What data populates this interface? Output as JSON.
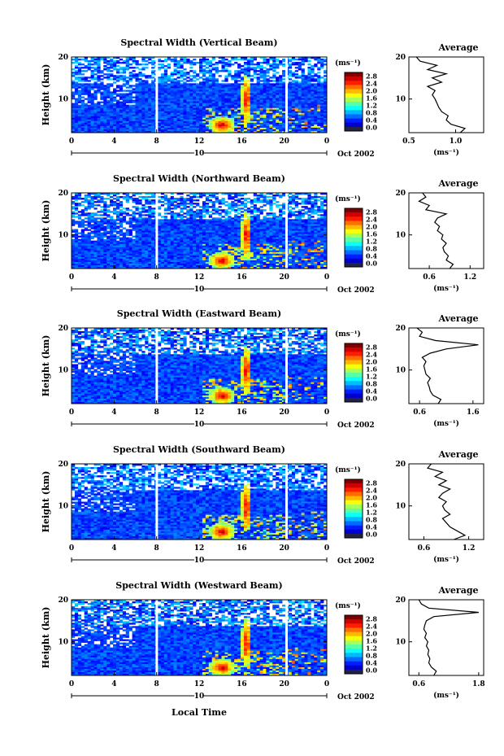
{
  "figure": {
    "xaxis_label": "Local Time",
    "month_label": "Oct 2002",
    "date_label": "10",
    "colorbar_unit": "(ms⁻¹)",
    "average_title": "Average",
    "average_xunit": "(ms⁻¹)",
    "height_label": "Height (km)"
  },
  "chart_data": [
    {
      "type": "heatmap",
      "title": "Spectral Width (Vertical Beam)",
      "xlim": [
        0,
        24
      ],
      "x_ticks": [
        "0",
        "4",
        "8",
        "12",
        "16",
        "20",
        "0"
      ],
      "ylim": [
        2,
        20
      ],
      "y_ticks": [
        "10",
        "20"
      ],
      "ylabel": "Height (km)",
      "colorbar_ticks": [
        "2.8",
        "2.4",
        "2.0",
        "1.6",
        "1.2",
        "0.8",
        "0.4",
        "0.0"
      ],
      "average": {
        "title": "Average",
        "xlim": [
          0.5,
          1.3
        ],
        "x_ticks": [
          "0.5",
          "1.0"
        ],
        "profile": [
          [
            1.05,
            2
          ],
          [
            1.1,
            3
          ],
          [
            0.95,
            4
          ],
          [
            0.9,
            5
          ],
          [
            0.92,
            6
          ],
          [
            0.85,
            7
          ],
          [
            0.82,
            8
          ],
          [
            0.8,
            9
          ],
          [
            0.78,
            10
          ],
          [
            0.75,
            11
          ],
          [
            0.78,
            12
          ],
          [
            0.7,
            13
          ],
          [
            0.85,
            14
          ],
          [
            0.75,
            15
          ],
          [
            0.9,
            16
          ],
          [
            0.7,
            17
          ],
          [
            0.8,
            18
          ],
          [
            0.62,
            19
          ],
          [
            0.58,
            20
          ]
        ]
      }
    },
    {
      "type": "heatmap",
      "title": "Spectral Width (Northward Beam)",
      "xlim": [
        0,
        24
      ],
      "x_ticks": [
        "0",
        "4",
        "8",
        "12",
        "16",
        "20",
        "0"
      ],
      "ylim": [
        2,
        20
      ],
      "y_ticks": [
        "10",
        "20"
      ],
      "ylabel": "Height (km)",
      "colorbar_ticks": [
        "2.8",
        "2.4",
        "2.0",
        "1.6",
        "1.2",
        "0.8",
        "0.4",
        "0.0"
      ],
      "average": {
        "title": "Average",
        "xlim": [
          0.3,
          1.4
        ],
        "x_ticks": [
          "0.6",
          "1.2"
        ],
        "profile": [
          [
            0.9,
            2
          ],
          [
            0.95,
            3
          ],
          [
            0.85,
            4
          ],
          [
            0.88,
            5
          ],
          [
            0.82,
            6
          ],
          [
            0.8,
            7
          ],
          [
            0.85,
            8
          ],
          [
            0.78,
            9
          ],
          [
            0.8,
            10
          ],
          [
            0.72,
            11
          ],
          [
            0.75,
            12
          ],
          [
            0.68,
            13
          ],
          [
            0.72,
            14
          ],
          [
            0.85,
            15
          ],
          [
            0.55,
            16
          ],
          [
            0.6,
            17
          ],
          [
            0.45,
            18
          ],
          [
            0.55,
            19
          ],
          [
            0.5,
            20
          ]
        ]
      }
    },
    {
      "type": "heatmap",
      "title": "Spectral Width (Eastward Beam)",
      "xlim": [
        0,
        24
      ],
      "x_ticks": [
        "0",
        "4",
        "8",
        "12",
        "16",
        "20",
        "0"
      ],
      "ylim": [
        2,
        20
      ],
      "y_ticks": [
        "10",
        "20"
      ],
      "ylabel": "Height (km)",
      "colorbar_ticks": [
        "2.8",
        "2.4",
        "2.0",
        "1.6",
        "1.2",
        "0.8",
        "0.4",
        "0.0"
      ],
      "average": {
        "title": "Average",
        "xlim": [
          0.4,
          1.8
        ],
        "x_ticks": [
          "0.6",
          "1.6"
        ],
        "profile": [
          [
            0.95,
            2
          ],
          [
            1.0,
            3
          ],
          [
            0.85,
            4
          ],
          [
            0.8,
            5
          ],
          [
            0.78,
            6
          ],
          [
            0.75,
            7
          ],
          [
            0.8,
            8
          ],
          [
            0.72,
            9
          ],
          [
            0.7,
            10
          ],
          [
            0.68,
            11
          ],
          [
            0.72,
            12
          ],
          [
            0.65,
            13
          ],
          [
            0.8,
            14
          ],
          [
            1.1,
            15
          ],
          [
            1.7,
            16
          ],
          [
            0.9,
            17
          ],
          [
            0.6,
            18
          ],
          [
            0.65,
            19
          ],
          [
            0.55,
            20
          ]
        ]
      }
    },
    {
      "type": "heatmap",
      "title": "Spectral Width (Southward Beam)",
      "xlim": [
        0,
        24
      ],
      "x_ticks": [
        "0",
        "4",
        "8",
        "12",
        "16",
        "20",
        "0"
      ],
      "ylim": [
        2,
        20
      ],
      "y_ticks": [
        "10",
        "20"
      ],
      "ylabel": "Height (km)",
      "colorbar_ticks": [
        "2.8",
        "2.4",
        "2.0",
        "1.6",
        "1.2",
        "0.8",
        "0.4",
        "0.0"
      ],
      "average": {
        "title": "Average",
        "xlim": [
          0.4,
          1.4
        ],
        "x_ticks": [
          "0.6",
          "1.2"
        ],
        "profile": [
          [
            1.0,
            2
          ],
          [
            1.15,
            3
          ],
          [
            1.05,
            4
          ],
          [
            0.95,
            5
          ],
          [
            0.9,
            6
          ],
          [
            0.85,
            7
          ],
          [
            0.95,
            8
          ],
          [
            0.88,
            9
          ],
          [
            0.85,
            10
          ],
          [
            0.9,
            11
          ],
          [
            0.8,
            12
          ],
          [
            0.85,
            13
          ],
          [
            0.95,
            14
          ],
          [
            0.8,
            15
          ],
          [
            0.9,
            16
          ],
          [
            0.75,
            17
          ],
          [
            0.85,
            18
          ],
          [
            0.65,
            19
          ],
          [
            0.7,
            20
          ]
        ]
      }
    },
    {
      "type": "heatmap",
      "title": "Spectral Width (Westward Beam)",
      "xlim": [
        0,
        24
      ],
      "x_ticks": [
        "0",
        "4",
        "8",
        "12",
        "16",
        "20",
        "0"
      ],
      "ylim": [
        2,
        20
      ],
      "y_ticks": [
        "10",
        "20"
      ],
      "ylabel": "Height (km)",
      "colorbar_ticks": [
        "2.8",
        "2.4",
        "2.0",
        "1.6",
        "1.2",
        "0.8",
        "0.4",
        "0.0"
      ],
      "average": {
        "title": "Average",
        "xlim": [
          0.4,
          1.9
        ],
        "x_ticks": [
          "0.6",
          "1.8"
        ],
        "profile": [
          [
            0.9,
            2
          ],
          [
            0.95,
            3
          ],
          [
            0.85,
            4
          ],
          [
            0.8,
            5
          ],
          [
            0.82,
            6
          ],
          [
            0.78,
            7
          ],
          [
            0.8,
            8
          ],
          [
            0.75,
            9
          ],
          [
            0.78,
            10
          ],
          [
            0.72,
            11
          ],
          [
            0.75,
            12
          ],
          [
            0.7,
            13
          ],
          [
            0.72,
            14
          ],
          [
            0.75,
            15
          ],
          [
            0.9,
            16
          ],
          [
            1.8,
            17
          ],
          [
            0.8,
            18
          ],
          [
            0.65,
            19
          ],
          [
            0.6,
            20
          ]
        ]
      }
    }
  ]
}
